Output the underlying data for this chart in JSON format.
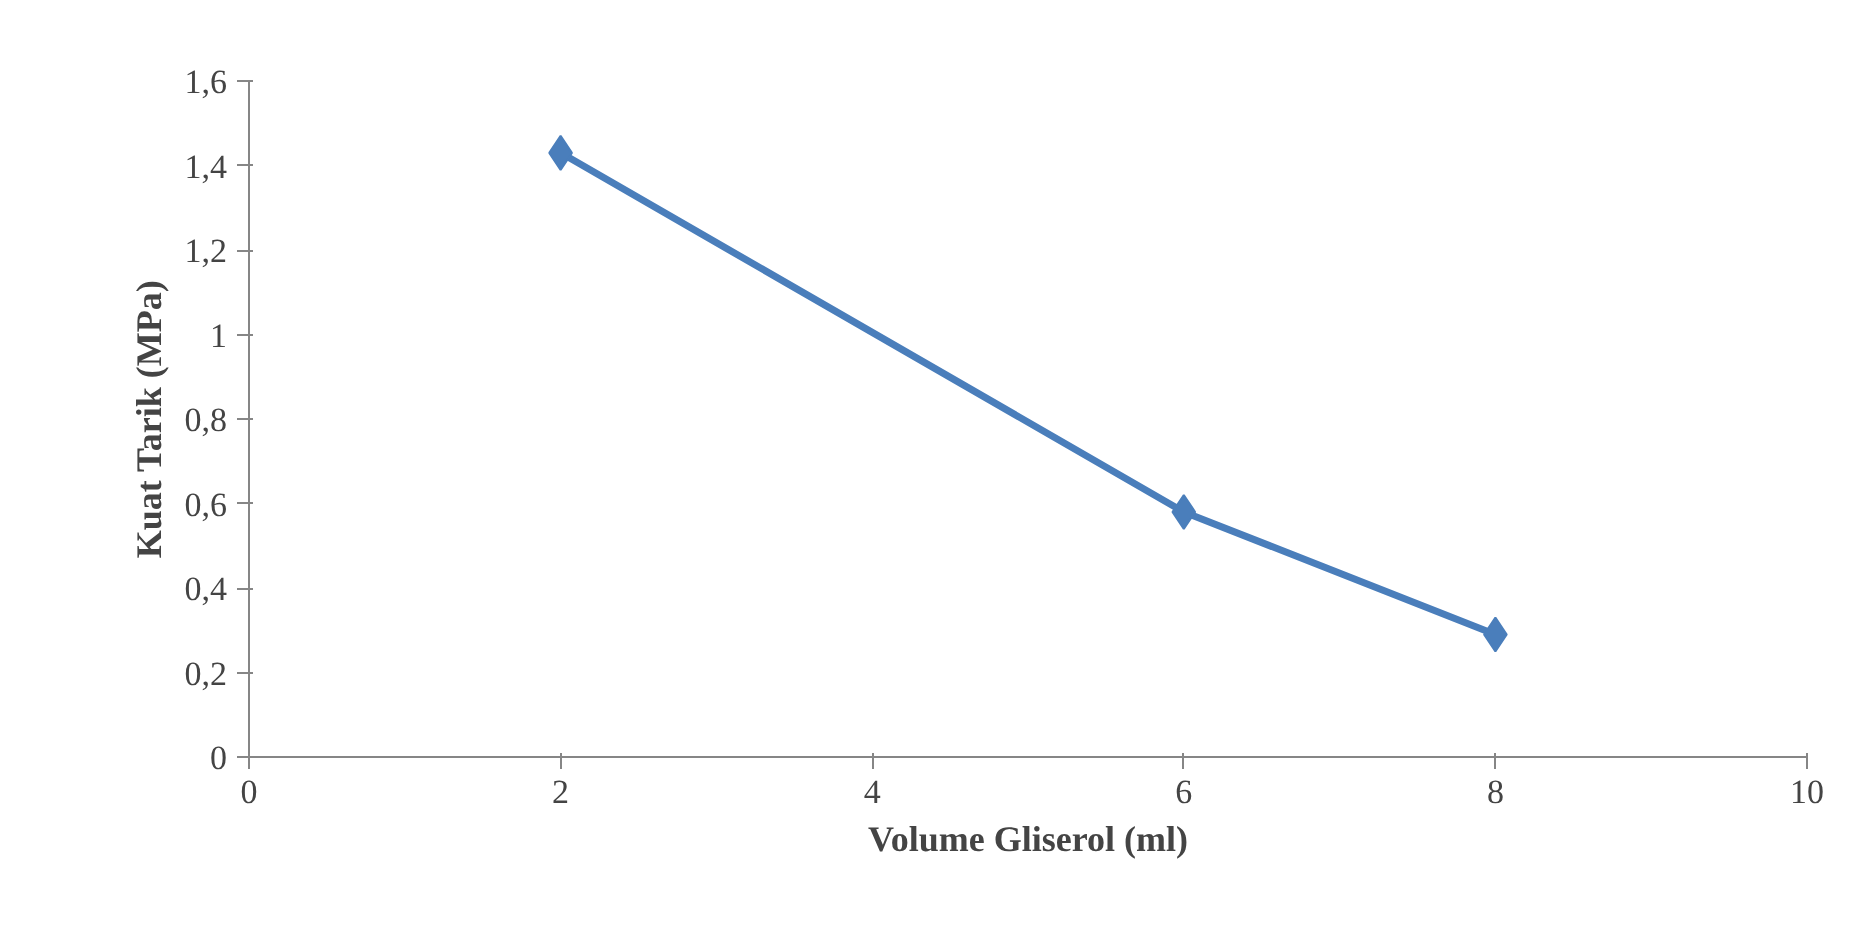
{
  "chart_data": {
    "type": "line",
    "xlabel": "Volume Gliserol (ml)",
    "ylabel": "Kuat Tarik (MPa)",
    "x": [
      2,
      6,
      8
    ],
    "series": [
      {
        "color": "#4a7ebb",
        "values": [
          1.43,
          0.58,
          0.29
        ]
      }
    ],
    "xlim": [
      0,
      10
    ],
    "xticks": [
      0,
      2,
      4,
      6,
      8,
      10
    ],
    "ylim": [
      0,
      1.6
    ],
    "yticks": [
      0,
      {
        "value": 0.2,
        "label": "0,2"
      },
      {
        "value": 0.4,
        "label": "0,4"
      },
      {
        "value": 0.6,
        "label": "0,6"
      },
      {
        "value": 0.8,
        "label": "0,8"
      },
      1,
      {
        "value": 1.2,
        "label": "1,2"
      },
      {
        "value": 1.4,
        "label": "1,4"
      },
      {
        "value": 1.6,
        "label": "1,6"
      }
    ],
    "grid": false,
    "marker": "diamond",
    "line_style": "solid"
  }
}
